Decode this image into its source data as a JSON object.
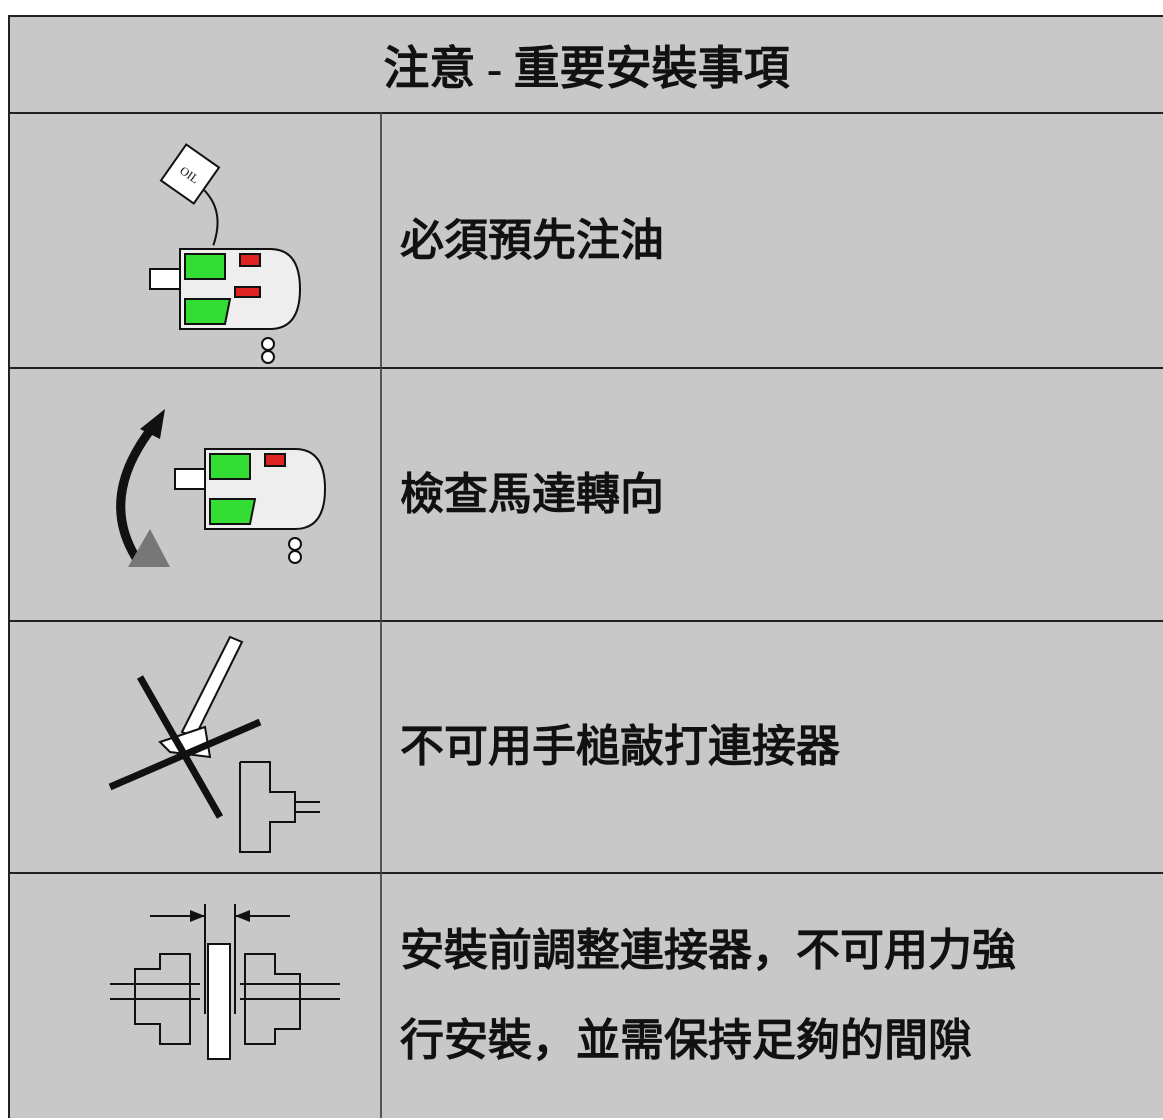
{
  "header": {
    "title": "注意 - 重要安裝事項"
  },
  "rows": [
    {
      "lines": [
        "必須預先注油"
      ]
    },
    {
      "lines": [
        "檢查馬達轉向"
      ]
    },
    {
      "lines": [
        "不可用手槌敲打連接器"
      ]
    },
    {
      "lines": [
        "安裝前調整連接器，不可用力強",
        "行安裝，並需保持足夠的間隙"
      ]
    }
  ]
}
